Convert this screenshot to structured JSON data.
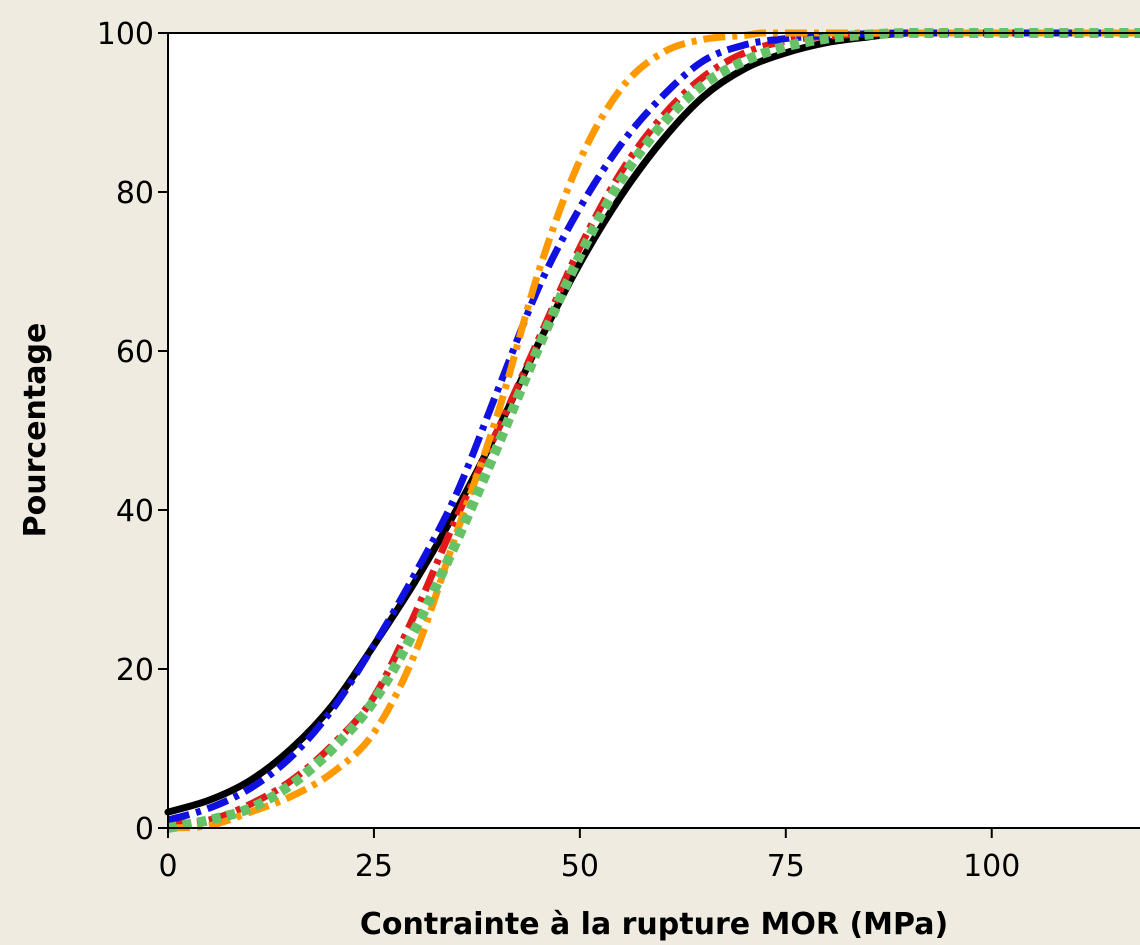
{
  "chart_data": {
    "type": "line",
    "title": "",
    "xlabel": "Contrainte à la rupture MOR (MPa)",
    "ylabel": "Pourcentage",
    "xlim": [
      0,
      118
    ],
    "ylim": [
      0,
      100
    ],
    "xticks": [
      0,
      25,
      50,
      75,
      100
    ],
    "yticks": [
      0,
      20,
      40,
      60,
      80,
      100
    ],
    "xtick_labels": [
      "0",
      "25",
      "50",
      "75",
      "100"
    ],
    "ytick_labels": [
      "0",
      "20",
      "40",
      "60",
      "80",
      "100"
    ],
    "grid": false,
    "legend": "none",
    "series": [
      {
        "color": "#000000",
        "style": "solid",
        "x": [
          0,
          5,
          10,
          15,
          20,
          25,
          30,
          35,
          40,
          45,
          50,
          55,
          60,
          65,
          70,
          75,
          80,
          85,
          90,
          100,
          118
        ],
        "y": [
          2,
          3.5,
          6,
          10,
          15.5,
          23,
          31,
          40,
          50,
          61,
          71,
          79.5,
          86.5,
          92,
          95.5,
          97.5,
          98.8,
          99.5,
          100,
          100,
          100
        ]
      },
      {
        "color": "#e31a1c",
        "style": "dashdot",
        "x": [
          0,
          5,
          10,
          15,
          20,
          25,
          30,
          35,
          40,
          45,
          50,
          55,
          60,
          65,
          70,
          75,
          80,
          85,
          90,
          100,
          118
        ],
        "y": [
          0.5,
          1,
          3,
          6,
          10.5,
          16.5,
          27,
          39,
          50,
          61.5,
          73,
          82.5,
          89.5,
          94.5,
          97.5,
          99,
          99.6,
          99.9,
          100,
          100,
          100
        ]
      },
      {
        "color": "#1010e0",
        "style": "dashdot",
        "x": [
          0,
          5,
          10,
          15,
          20,
          25,
          30,
          35,
          40,
          45,
          50,
          55,
          60,
          65,
          70,
          75,
          80,
          85,
          90,
          100,
          118
        ],
        "y": [
          1,
          2.5,
          5,
          9,
          15,
          23,
          32,
          42,
          55,
          68,
          78,
          86,
          92,
          96.5,
          98.5,
          99.3,
          99.7,
          99.9,
          100,
          100,
          100
        ]
      },
      {
        "color": "#ff9900",
        "style": "dashdot",
        "x": [
          0,
          5,
          10,
          15,
          20,
          25,
          30,
          35,
          40,
          45,
          50,
          55,
          60,
          65,
          70,
          72,
          75,
          80,
          90,
          100,
          118
        ],
        "y": [
          0,
          0.3,
          2,
          4,
          7,
          12,
          22,
          37,
          52,
          70,
          84,
          93,
          97.5,
          99.2,
          99.7,
          100,
          100,
          100,
          100,
          100,
          100
        ]
      },
      {
        "color": "#66c266",
        "style": "dotted",
        "x": [
          0,
          5,
          10,
          15,
          20,
          25,
          30,
          35,
          40,
          45,
          50,
          55,
          60,
          65,
          70,
          75,
          80,
          85,
          90,
          100,
          118
        ],
        "y": [
          0,
          1,
          2.5,
          5.5,
          10,
          16,
          25,
          36,
          48,
          60.5,
          72,
          81.5,
          88.5,
          93.5,
          96.5,
          98.3,
          99.3,
          99.8,
          100,
          100,
          100
        ]
      }
    ]
  }
}
